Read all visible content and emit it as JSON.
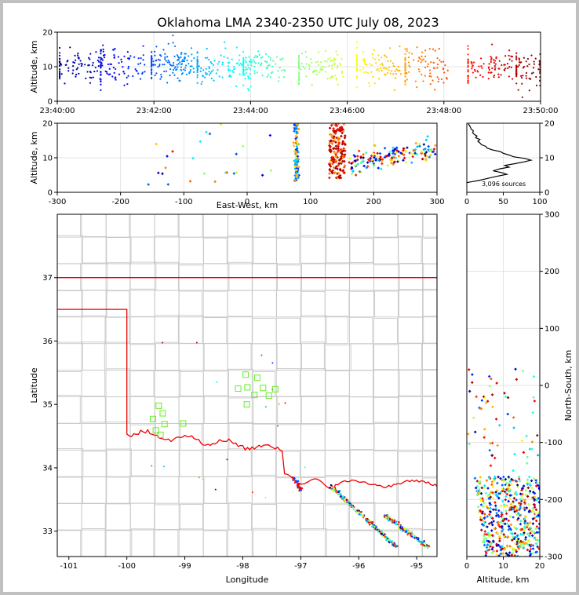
{
  "chart_data": [
    {
      "type": "scatter",
      "id": "time-height",
      "title": "Oklahoma LMA 2340-2350 UTC July 08, 2023",
      "xlabel": "",
      "ylabel": "Altitude, km",
      "xticks": [
        "23:40:00",
        "23:42:00",
        "23:44:00",
        "23:46:00",
        "23:48:00",
        "23:50:00"
      ],
      "xlim_minutes": [
        0,
        10
      ],
      "ylim": [
        0,
        20
      ],
      "yticks": [
        0,
        10,
        20
      ],
      "colormap": "jet, by time",
      "point_groups": [
        {
          "x_min": 0.05,
          "y_mean": 10,
          "count": 60
        },
        {
          "x_min": 0.9,
          "y_mean": 10,
          "count": 70
        },
        {
          "x_min": 1.95,
          "y_mean": 11,
          "count": 110
        },
        {
          "x_min": 2.9,
          "y_mean": 10,
          "count": 70
        },
        {
          "x_min": 3.85,
          "y_mean": 10,
          "count": 80
        },
        {
          "x_min": 5.0,
          "y_mean": 10,
          "count": 70
        },
        {
          "x_min": 6.2,
          "y_mean": 10,
          "count": 70
        },
        {
          "x_min": 7.2,
          "y_mean": 10,
          "count": 70
        },
        {
          "x_min": 8.5,
          "y_mean": 10,
          "count": 70
        },
        {
          "x_min": 9.5,
          "y_mean": 9,
          "count": 60
        }
      ]
    },
    {
      "type": "scatter",
      "id": "ew-altitude",
      "xlabel": "East-West, km",
      "ylabel": "Altitude, km",
      "xlim": [
        -300,
        300
      ],
      "xticks": [
        -300,
        -200,
        -100,
        0,
        100,
        200,
        300
      ],
      "ylim": [
        0,
        20
      ],
      "yticks": [
        0,
        10,
        20
      ]
    },
    {
      "type": "line",
      "id": "altitude-histogram",
      "xlim": [
        0,
        100
      ],
      "xticks": [
        0,
        50,
        100
      ],
      "ylim": [
        0,
        20
      ],
      "yticks": [
        0,
        10,
        20
      ],
      "annotation": "3,096 sources",
      "profile": [
        {
          "alt": 2.8,
          "count": 0
        },
        {
          "alt": 3.0,
          "count": 5
        },
        {
          "alt": 3.4,
          "count": 16
        },
        {
          "alt": 4.0,
          "count": 28
        },
        {
          "alt": 4.6,
          "count": 40
        },
        {
          "alt": 5.2,
          "count": 55
        },
        {
          "alt": 5.7,
          "count": 48
        },
        {
          "alt": 6.2,
          "count": 36
        },
        {
          "alt": 6.8,
          "count": 45
        },
        {
          "alt": 7.3,
          "count": 58
        },
        {
          "alt": 7.8,
          "count": 52
        },
        {
          "alt": 8.3,
          "count": 66
        },
        {
          "alt": 8.8,
          "count": 78
        },
        {
          "alt": 9.3,
          "count": 88
        },
        {
          "alt": 9.8,
          "count": 80
        },
        {
          "alt": 10.3,
          "count": 64
        },
        {
          "alt": 10.8,
          "count": 58
        },
        {
          "alt": 11.3,
          "count": 50
        },
        {
          "alt": 11.8,
          "count": 46
        },
        {
          "alt": 12.3,
          "count": 35
        },
        {
          "alt": 12.8,
          "count": 28
        },
        {
          "alt": 13.3,
          "count": 26
        },
        {
          "alt": 13.8,
          "count": 20
        },
        {
          "alt": 14.3,
          "count": 18
        },
        {
          "alt": 14.8,
          "count": 15
        },
        {
          "alt": 15.3,
          "count": 18
        },
        {
          "alt": 15.8,
          "count": 12
        },
        {
          "alt": 16.3,
          "count": 14
        },
        {
          "alt": 16.8,
          "count": 10
        },
        {
          "alt": 17.3,
          "count": 8
        },
        {
          "alt": 17.8,
          "count": 9
        },
        {
          "alt": 18.3,
          "count": 6
        },
        {
          "alt": 18.8,
          "count": 5
        },
        {
          "alt": 19.3,
          "count": 4
        },
        {
          "alt": 19.8,
          "count": 2
        }
      ]
    },
    {
      "type": "scatter",
      "id": "plan-view-map",
      "xlabel": "Longitude",
      "ylabel": "Latitude",
      "xlim": [
        -101.2,
        -94.65
      ],
      "xticks": [
        -101,
        -100,
        -99,
        -98,
        -97,
        -96,
        -95
      ],
      "ylim": [
        32.6,
        38.0
      ],
      "yticks": [
        33,
        34,
        35,
        36,
        37
      ],
      "stations": [
        {
          "lon": -97.95,
          "lat": 35.47
        },
        {
          "lon": -97.75,
          "lat": 35.42
        },
        {
          "lon": -98.08,
          "lat": 35.25
        },
        {
          "lon": -97.92,
          "lat": 35.27
        },
        {
          "lon": -97.65,
          "lat": 35.26
        },
        {
          "lon": -97.44,
          "lat": 35.24
        },
        {
          "lon": -97.8,
          "lat": 35.15
        },
        {
          "lon": -97.55,
          "lat": 35.14
        },
        {
          "lon": -97.93,
          "lat": 35.0
        },
        {
          "lon": -99.45,
          "lat": 34.98
        },
        {
          "lon": -99.38,
          "lat": 34.86
        },
        {
          "lon": -99.55,
          "lat": 34.77
        },
        {
          "lon": -99.35,
          "lat": 34.69
        },
        {
          "lon": -99.03,
          "lat": 34.7
        },
        {
          "lon": -99.5,
          "lat": 34.59
        },
        {
          "lon": -99.42,
          "lat": 34.52
        }
      ],
      "storm_bands": [
        {
          "from": [
            -97.12,
            33.85
          ],
          "to": [
            -96.98,
            33.62
          ],
          "count": 40
        },
        {
          "from": [
            -96.5,
            33.72
          ],
          "to": [
            -95.35,
            32.75
          ],
          "count": 230
        },
        {
          "from": [
            -95.55,
            33.25
          ],
          "to": [
            -94.8,
            32.75
          ],
          "count": 140
        }
      ]
    },
    {
      "type": "scatter",
      "id": "altitude-ns",
      "xlabel": "Altitude, km",
      "ylabel": "North-South, km",
      "xlim": [
        0,
        20
      ],
      "xticks": [
        0,
        10,
        20
      ],
      "ylim": [
        -300,
        300
      ],
      "yticks": [
        -300,
        -200,
        -100,
        0,
        100,
        200,
        300
      ]
    }
  ]
}
